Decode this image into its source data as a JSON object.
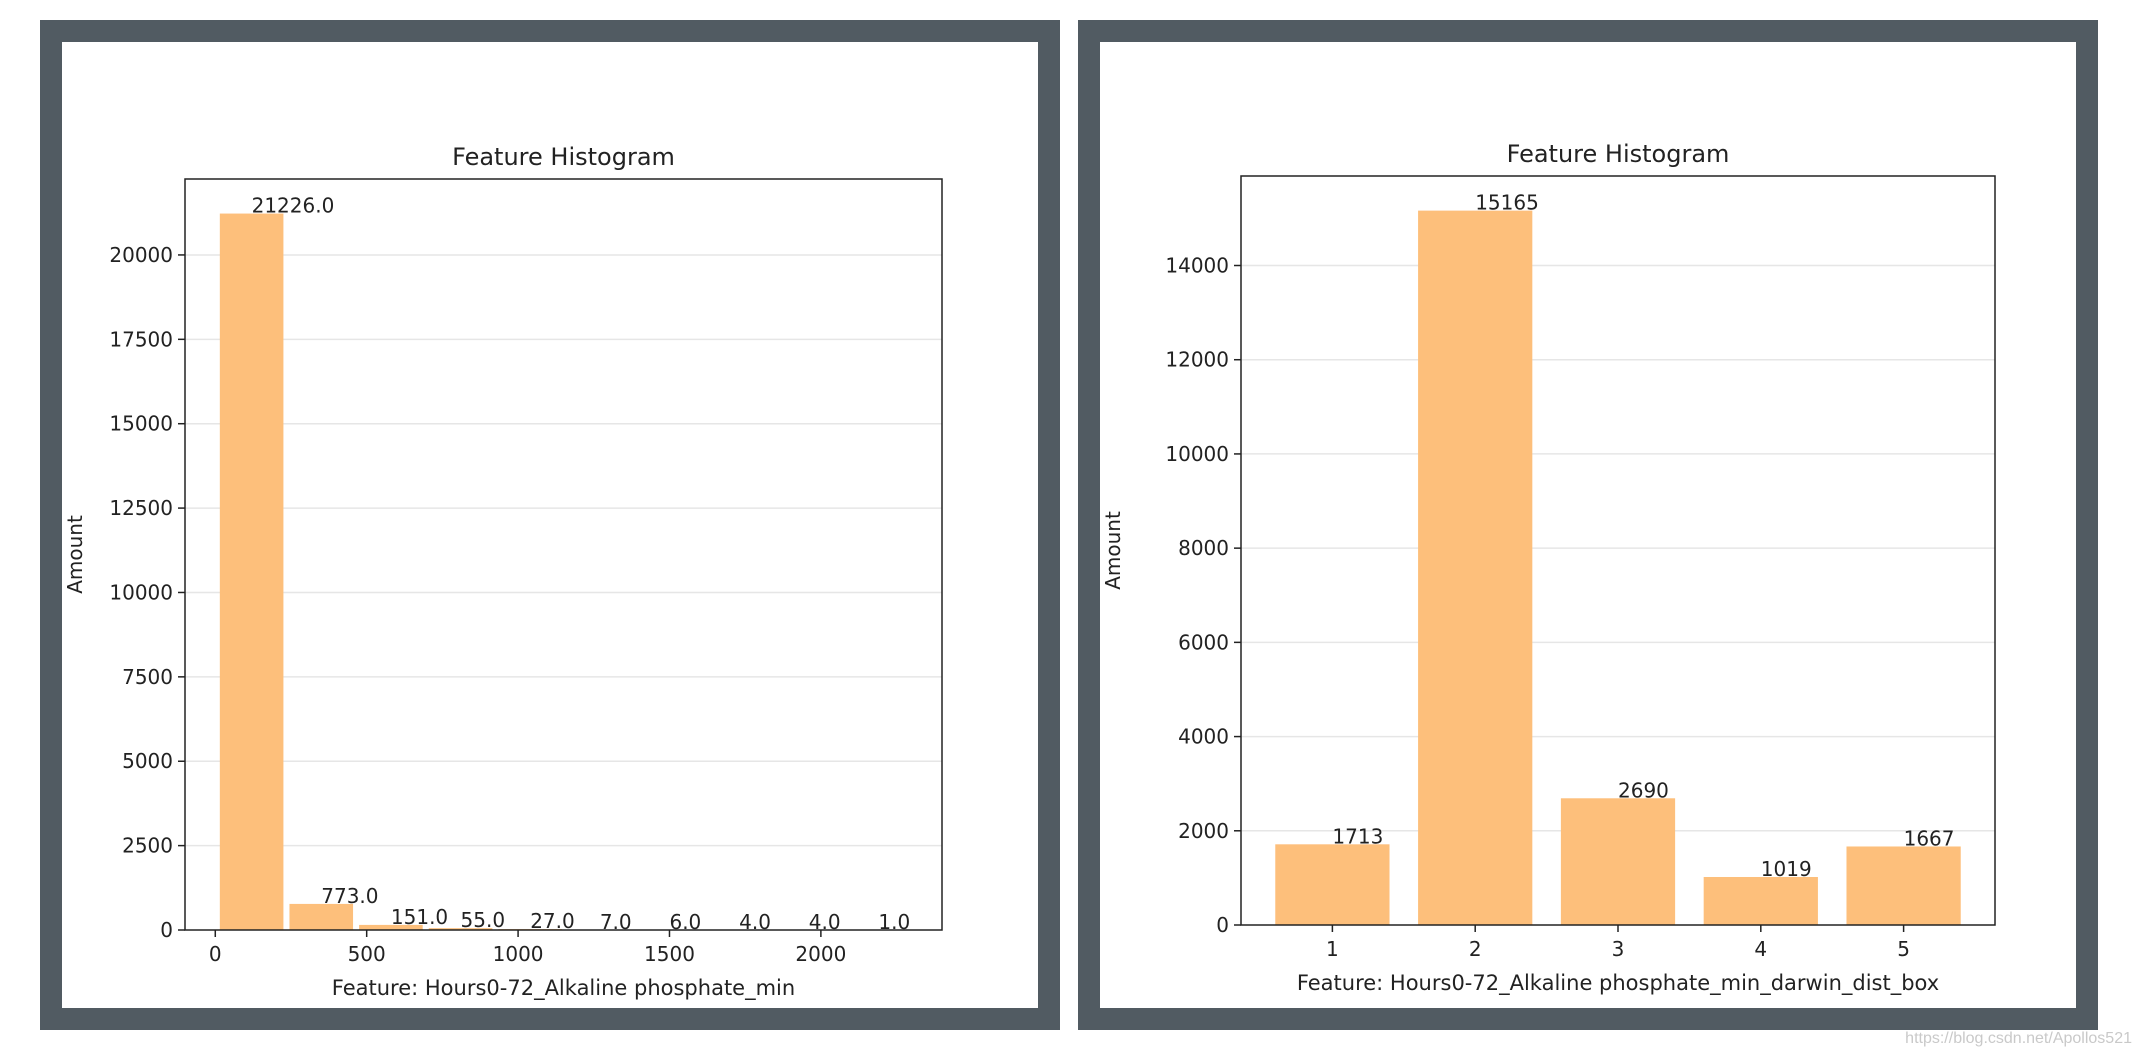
{
  "colors": {
    "frame": "#515b62",
    "bar": "#fdbf7b",
    "grid": "#e6e6e6",
    "axis": "#222222",
    "text": "#222222"
  },
  "watermark": "https://blog.csdn.net/Apollos521",
  "chart_data": [
    {
      "type": "bar",
      "title": "Feature Histogram",
      "xlabel": "Feature: Hours0-72_Alkaline phosphate_min",
      "ylabel": "Amount",
      "bins": [
        {
          "x0": 15,
          "x1": 225,
          "value": 21226,
          "label": "21226.0"
        },
        {
          "x0": 245,
          "x1": 455,
          "value": 773,
          "label": "773.0"
        },
        {
          "x0": 475,
          "x1": 685,
          "value": 151,
          "label": "151.0"
        },
        {
          "x0": 705,
          "x1": 915,
          "value": 55,
          "label": "55.0"
        },
        {
          "x0": 935,
          "x1": 1145,
          "value": 27,
          "label": "27.0"
        },
        {
          "x0": 1165,
          "x1": 1375,
          "value": 7,
          "label": "7.0"
        },
        {
          "x0": 1395,
          "x1": 1605,
          "value": 6,
          "label": "6.0"
        },
        {
          "x0": 1625,
          "x1": 1835,
          "value": 4,
          "label": "4.0"
        },
        {
          "x0": 1855,
          "x1": 2065,
          "value": 4,
          "label": "4.0"
        },
        {
          "x0": 2085,
          "x1": 2295,
          "value": 1,
          "label": "1.0"
        }
      ],
      "xlim": [
        -100,
        2400
      ],
      "ylim": [
        0,
        22250
      ],
      "xticks": [
        0,
        500,
        1000,
        1500,
        2000
      ],
      "xtick_labels": [
        "0",
        "500",
        "1000",
        "1500",
        "2000"
      ],
      "yticks": [
        0,
        2500,
        5000,
        7500,
        10000,
        12500,
        15000,
        17500,
        20000
      ],
      "ytick_labels": [
        "0",
        "2500",
        "5000",
        "7500",
        "10000",
        "12500",
        "15000",
        "17500",
        "20000"
      ],
      "grid": "horizontal"
    },
    {
      "type": "bar",
      "title": "Feature Histogram",
      "xlabel": "Feature: Hours0-72_Alkaline phosphate_min_darwin_dist_box",
      "ylabel": "Amount",
      "bins": [
        {
          "x0": 0.6,
          "x1": 1.4,
          "value": 1713,
          "label": "1713"
        },
        {
          "x0": 1.6,
          "x1": 2.4,
          "value": 15165,
          "label": "15165"
        },
        {
          "x0": 2.6,
          "x1": 3.4,
          "value": 2690,
          "label": "2690"
        },
        {
          "x0": 3.6,
          "x1": 4.4,
          "value": 1019,
          "label": "1019"
        },
        {
          "x0": 4.6,
          "x1": 5.4,
          "value": 1667,
          "label": "1667"
        }
      ],
      "xlim": [
        0.36,
        5.64
      ],
      "ylim": [
        0,
        15900
      ],
      "xticks": [
        1,
        2,
        3,
        4,
        5
      ],
      "xtick_labels": [
        "1",
        "2",
        "3",
        "4",
        "5"
      ],
      "yticks": [
        0,
        2000,
        4000,
        6000,
        8000,
        10000,
        12000,
        14000
      ],
      "ytick_labels": [
        "0",
        "2000",
        "4000",
        "6000",
        "8000",
        "10000",
        "12000",
        "14000"
      ],
      "grid": "horizontal"
    }
  ]
}
